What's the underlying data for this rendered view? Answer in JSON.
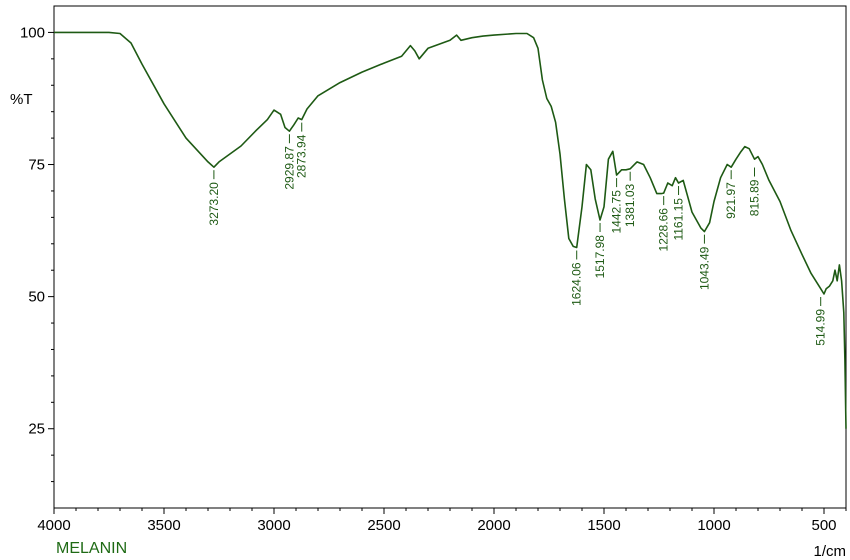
{
  "sample_name": "MELANIN",
  "colors": {
    "trace": "#1e5a14",
    "axis": "#000000",
    "sample_name": "#1e6a14"
  },
  "chart_data": {
    "type": "line",
    "title": "",
    "xlabel": "1/cm",
    "ylabel": "%T",
    "x_reversed": true,
    "xlim": [
      4000,
      400
    ],
    "ylim": [
      10,
      105
    ],
    "grid": false,
    "x_ticks": [
      4000,
      3500,
      3000,
      2500,
      2000,
      1500,
      1000,
      500
    ],
    "y_ticks": [
      25,
      50,
      75,
      100
    ],
    "series": [
      {
        "x": [
          4000,
          3900,
          3750,
          3700,
          3650,
          3600,
          3500,
          3400,
          3300,
          3273.2,
          3250,
          3150,
          3080,
          3030,
          3000,
          2970,
          2950,
          2929.87,
          2910,
          2890,
          2873.94,
          2850,
          2800,
          2700,
          2600,
          2500,
          2420,
          2380,
          2360,
          2340,
          2300,
          2200,
          2170,
          2150,
          2100,
          2050,
          2000,
          1900,
          1850,
          1820,
          1800,
          1780,
          1760,
          1740,
          1720,
          1700,
          1680,
          1660,
          1640,
          1624.06,
          1600,
          1580,
          1560,
          1540,
          1517.98,
          1500,
          1480,
          1460,
          1442.75,
          1420,
          1400,
          1381.03,
          1350,
          1320,
          1290,
          1260,
          1240,
          1228.66,
          1210,
          1190,
          1175,
          1161.15,
          1140,
          1120,
          1100,
          1080,
          1060,
          1043.49,
          1020,
          1000,
          970,
          940,
          921.97,
          900,
          880,
          860,
          840,
          815.89,
          800,
          780,
          750,
          700,
          650,
          600,
          560,
          530,
          514.99,
          500,
          490,
          475,
          460,
          450,
          440,
          430,
          420,
          415,
          410,
          405,
          400
        ],
        "y": [
          100,
          100,
          100,
          99.8,
          98,
          94,
          86.5,
          80,
          75.5,
          74.5,
          75.5,
          78.5,
          81.5,
          83.5,
          85.3,
          84.5,
          82,
          81.3,
          82.5,
          83.8,
          83.5,
          85.5,
          88,
          90.5,
          92.5,
          94.2,
          95.5,
          97.5,
          96.5,
          95,
          97,
          98.5,
          99.5,
          98.5,
          99,
          99.3,
          99.5,
          99.8,
          99.8,
          99,
          97,
          91,
          87.5,
          86,
          83,
          77,
          68.5,
          61,
          59.5,
          59.3,
          67,
          75,
          74,
          68.5,
          64.5,
          67,
          76,
          77.5,
          73,
          74,
          74,
          74.2,
          75.5,
          75,
          72.5,
          69.5,
          69.5,
          69.6,
          71.5,
          71,
          72.5,
          71.5,
          72,
          69,
          66,
          64.5,
          63,
          62.3,
          64,
          68,
          72.5,
          75,
          74.5,
          76,
          77.3,
          78.4,
          78,
          76,
          76.5,
          75,
          72,
          68,
          62.5,
          58,
          54.5,
          52.5,
          51.5,
          50.5,
          51.5,
          52,
          53,
          55,
          53,
          56,
          53,
          50,
          47,
          38,
          25
        ]
      }
    ],
    "peak_labels": [
      {
        "x": 3273.2,
        "y": 74.5,
        "text": "3273.20"
      },
      {
        "x": 2929.87,
        "y": 81.3,
        "text": "2929.87"
      },
      {
        "x": 2873.94,
        "y": 83.5,
        "text": "2873.94"
      },
      {
        "x": 1624.06,
        "y": 59.3,
        "text": "1624.06"
      },
      {
        "x": 1517.98,
        "y": 64.5,
        "text": "1517.98"
      },
      {
        "x": 1442.75,
        "y": 73.0,
        "text": "1442.75"
      },
      {
        "x": 1381.03,
        "y": 74.2,
        "text": "1381.03"
      },
      {
        "x": 1228.66,
        "y": 69.6,
        "text": "1228.66"
      },
      {
        "x": 1161.15,
        "y": 71.5,
        "text": "1161.15"
      },
      {
        "x": 1043.49,
        "y": 62.3,
        "text": "1043.49"
      },
      {
        "x": 921.97,
        "y": 74.5,
        "text": "921.97"
      },
      {
        "x": 815.89,
        "y": 75.0,
        "text": "815.89"
      },
      {
        "x": 514.99,
        "y": 50.5,
        "text": "514.99"
      }
    ]
  }
}
